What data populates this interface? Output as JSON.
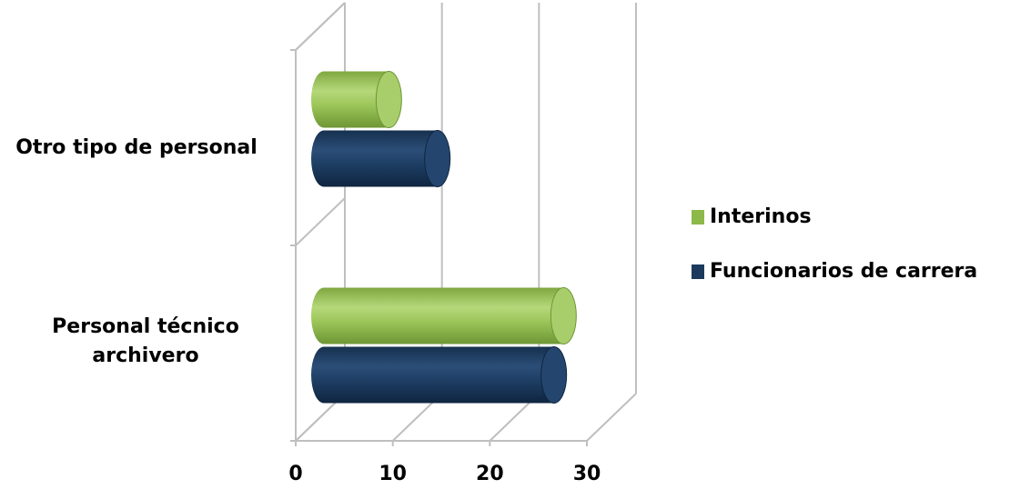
{
  "chart_data": {
    "type": "bar",
    "orientation": "horizontal",
    "style": "3d-cylinder",
    "categories": [
      "Otro tipo de personal",
      "Personal técnico archivero"
    ],
    "series": [
      {
        "name": "Interinos",
        "values": [
          8,
          26
        ],
        "color": "#8DB84A"
      },
      {
        "name": "Funcionarios de carrera",
        "values": [
          13,
          25
        ],
        "color": "#1B3A5E"
      }
    ],
    "xlim": [
      0,
      30
    ],
    "xticks": [
      "0",
      "10",
      "20",
      "30"
    ],
    "grid": true,
    "legend_position": "right"
  },
  "labels": {
    "cat0": "Otro tipo de personal",
    "cat1_line1": "Personal técnico",
    "cat1_line2": "archivero"
  },
  "legend": {
    "item0": "Interinos",
    "item1": "Funcionarios de carrera"
  }
}
